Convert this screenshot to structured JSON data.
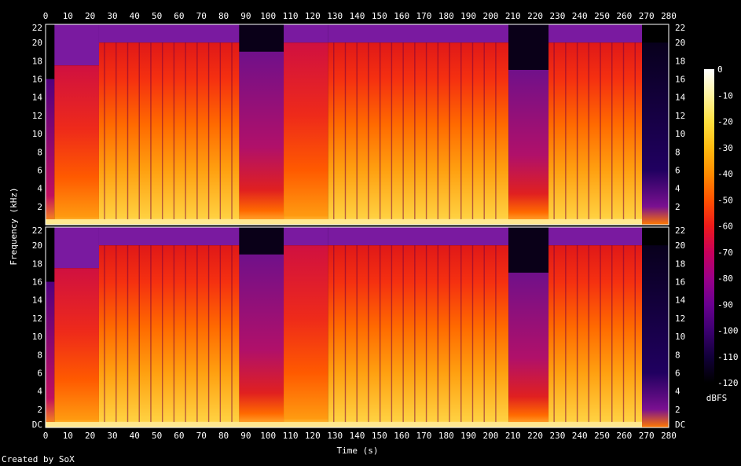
{
  "chart_data": {
    "type": "heatmap",
    "title": "",
    "xlabel": "Time (s)",
    "ylabel": "Frequency (kHz)",
    "x_ticks": [
      "0",
      "10",
      "20",
      "30",
      "40",
      "50",
      "60",
      "70",
      "80",
      "90",
      "100",
      "110",
      "120",
      "130",
      "140",
      "150",
      "160",
      "170",
      "180",
      "190",
      "200",
      "210",
      "220",
      "230",
      "240",
      "250",
      "260",
      "270",
      "280"
    ],
    "xlim": [
      0,
      280
    ],
    "ylim_khz": [
      0,
      22
    ],
    "y_ticks": [
      "DC",
      "2",
      "4",
      "6",
      "8",
      "10",
      "12",
      "14",
      "16",
      "18",
      "20",
      "22"
    ],
    "channels": 2,
    "colorbar": {
      "label": "dBFS",
      "ticks": [
        "0",
        "-10",
        "-20",
        "-30",
        "-40",
        "-50",
        "-60",
        "-70",
        "-80",
        "-90",
        "-100",
        "-110",
        "-120"
      ],
      "range": [
        -120,
        0
      ],
      "colors": [
        "#000000",
        "#12003a",
        "#3c0070",
        "#6a0090",
        "#9a0088",
        "#c8005a",
        "#ee1a1a",
        "#ff5200",
        "#ff8c00",
        "#ffbb10",
        "#ffe040",
        "#fff4a0",
        "#ffffff"
      ]
    },
    "segments": [
      {
        "t0": 0,
        "t1": 4,
        "cutoff_khz": 16,
        "level": "fade-in"
      },
      {
        "t0": 4,
        "t1": 24,
        "cutoff_khz": 17.5,
        "level": "medium"
      },
      {
        "t0": 24,
        "t1": 87,
        "cutoff_khz": 20,
        "level": "loud"
      },
      {
        "t0": 87,
        "t1": 107,
        "cutoff_khz": 19,
        "level": "quiet"
      },
      {
        "t0": 107,
        "t1": 127,
        "cutoff_khz": 20,
        "level": "medium"
      },
      {
        "t0": 127,
        "t1": 208,
        "cutoff_khz": 20,
        "level": "loud"
      },
      {
        "t0": 208,
        "t1": 226,
        "cutoff_khz": 17,
        "level": "quiet"
      },
      {
        "t0": 226,
        "t1": 268,
        "cutoff_khz": 20,
        "level": "loud"
      },
      {
        "t0": 268,
        "t1": 280,
        "cutoff_khz": 20,
        "level": "fade-out"
      }
    ]
  },
  "footer": {
    "credit": "Created by SoX"
  }
}
